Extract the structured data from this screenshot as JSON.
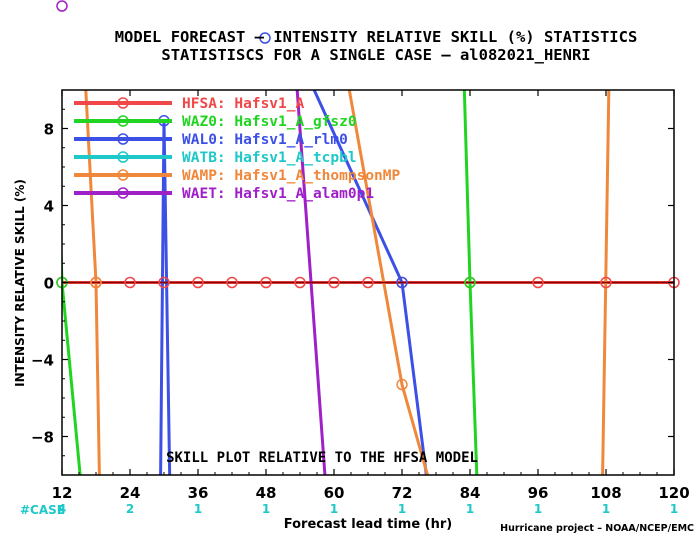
{
  "chart_data": {
    "type": "line",
    "title": "MODEL FORECAST – INTENSITY RELATIVE SKILL (%) STATISTICS",
    "subtitle": "STATISTISCS FOR A SINGLE CASE – al082021_HENRI",
    "xlabel": "Forecast lead time (hr)",
    "ylabel": "INTENSITY RELATIVE SKILL (%)",
    "xlim": [
      12,
      120
    ],
    "ylim": [
      -10,
      10
    ],
    "xticks": [
      "12",
      "24",
      "36",
      "48",
      "60",
      "72",
      "84",
      "96",
      "108",
      "120"
    ],
    "yticks": [
      "8",
      "4",
      "0",
      "−4",
      "−8"
    ],
    "grid": false,
    "legend_position": "top-left",
    "annotation": "SKILL PLOT RELATIVE TO THE HFSA MODEL",
    "case_label": "#CASE",
    "case_counts": [
      {
        "x": 12,
        "n": "4"
      },
      {
        "x": 24,
        "n": "2"
      },
      {
        "x": 36,
        "n": "1"
      },
      {
        "x": 48,
        "n": "1"
      },
      {
        "x": 60,
        "n": "1"
      },
      {
        "x": 72,
        "n": "1"
      },
      {
        "x": 84,
        "n": "1"
      },
      {
        "x": 96,
        "n": "1"
      },
      {
        "x": 108,
        "n": "1"
      },
      {
        "x": 120,
        "n": "1"
      }
    ],
    "credit": "Hurricane project – NOAA/NCEP/EMC",
    "series": [
      {
        "name": "HFSA: Hafsv1_A",
        "color": "#f04848",
        "markers": true,
        "x": [
          12,
          18,
          24,
          30,
          36,
          42,
          48,
          54,
          60,
          66,
          72,
          84,
          96,
          108,
          120
        ],
        "y": [
          0,
          0,
          0,
          0,
          0,
          0,
          0,
          0,
          0,
          0,
          0,
          0,
          0,
          0,
          0
        ]
      },
      {
        "name": "WAZ0: Hafsv1_A_gfsz0",
        "color": "#22d422",
        "markers": true,
        "x": [
          10.9,
          12,
          15.2
        ],
        "y": [
          10,
          0,
          -10
        ],
        "x2": [
          83,
          84,
          85.2
        ],
        "y2": [
          10,
          0,
          -10
        ]
      },
      {
        "name": "WAL0: Hafsv1_A_rlm0",
        "color": "#3c50e6",
        "markers": true,
        "x": [
          29.4,
          30,
          31
        ],
        "y": [
          -10,
          8.4,
          -10
        ],
        "x2": [
          56.5,
          72,
          76.3
        ],
        "y2": [
          10,
          0,
          -10
        ]
      },
      {
        "name": "WATB: Hafsv1_A_tcpbl",
        "color": "#1ec8c8",
        "markers": true,
        "x": [],
        "y": []
      },
      {
        "name": "WAMP: Hafsv1_A_thompsonMP",
        "color": "#f0883c",
        "markers": true,
        "x": [
          16.2,
          18,
          18.6
        ],
        "y": [
          10,
          0,
          -10
        ],
        "x2": [
          62.7,
          72,
          76.5
        ],
        "y2": [
          10,
          -5.3,
          -10
        ],
        "x3": [
          107.4,
          108.5
        ],
        "y3": [
          -10,
          10
        ]
      },
      {
        "name": "WAET: Hafsv1_A_alam0p1",
        "color": "#a020c8",
        "markers": true,
        "x": [
          53.5,
          58.4
        ],
        "y": [
          10,
          -10
        ]
      }
    ]
  }
}
